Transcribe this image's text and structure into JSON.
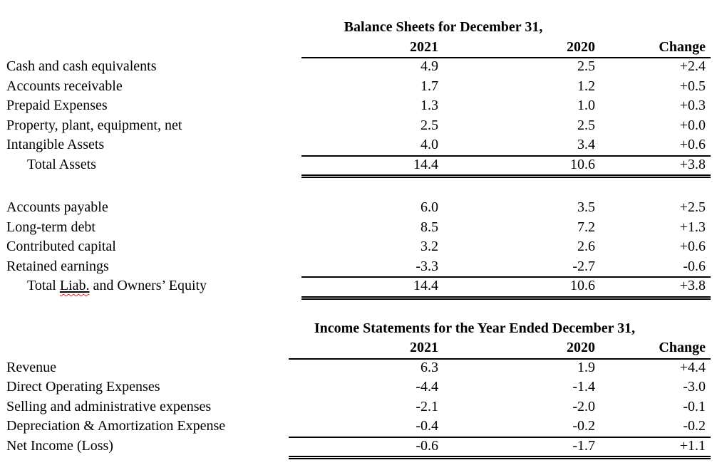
{
  "document": {
    "background_color": "#ffffff",
    "text_color": "#000000",
    "spellcheck_underline_color": "#e8261f"
  },
  "balance_sheet": {
    "title": "Balance Sheets for December 31,",
    "col_2021": "2021",
    "col_2020": "2020",
    "col_change": "Change",
    "asset_rows": [
      {
        "label": "Cash and cash equivalents",
        "v2021": "4.9",
        "v2020": "2.5",
        "change": "+2.4"
      },
      {
        "label": "Accounts receivable",
        "v2021": "1.7",
        "v2020": "1.2",
        "change": "+0.5"
      },
      {
        "label": "Prepaid Expenses",
        "v2021": "1.3",
        "v2020": "1.0",
        "change": "+0.3"
      },
      {
        "label": "Property, plant, equipment, net",
        "v2021": "2.5",
        "v2020": "2.5",
        "change": "+0.0"
      },
      {
        "label": "Intangible Assets",
        "v2021": "4.0",
        "v2020": "3.4",
        "change": "+0.6"
      }
    ],
    "assets_total": {
      "label": "Total Assets",
      "v2021": "14.4",
      "v2020": "10.6",
      "change": "+3.8"
    },
    "liability_rows": [
      {
        "label": "Accounts payable",
        "v2021": "6.0",
        "v2020": "3.5",
        "change": "+2.5"
      },
      {
        "label": "Long-term debt",
        "v2021": "8.5",
        "v2020": "7.2",
        "change": "+1.3"
      },
      {
        "label": "Contributed capital",
        "v2021": "3.2",
        "v2020": "2.6",
        "change": "+0.6"
      },
      {
        "label": "Retained earnings",
        "v2021": "-3.3",
        "v2020": "-2.7",
        "change": "-0.6"
      }
    ],
    "liabilities_total": {
      "label_part1": "Total ",
      "label_misspelled": "Liab.",
      "label_part3": " and Owners’ Equity",
      "v2021": "14.4",
      "v2020": "10.6",
      "change": "+3.8"
    }
  },
  "income_statement": {
    "title": "Income Statements for the Year Ended December 31,",
    "col_2021": "2021",
    "col_2020": "2020",
    "col_change": "Change",
    "rows": [
      {
        "label": "Revenue",
        "v2021": "6.3",
        "v2020": "1.9",
        "change": "+4.4"
      },
      {
        "label": "Direct Operating Expenses",
        "v2021": "-4.4",
        "v2020": "-1.4",
        "change": "-3.0"
      },
      {
        "label": "Selling and administrative expenses",
        "v2021": "-2.1",
        "v2020": "-2.0",
        "change": "-0.1"
      },
      {
        "label": "Depreciation & Amortization Expense",
        "v2021": "-0.4",
        "v2020": "-0.2",
        "change": "-0.2"
      }
    ],
    "total": {
      "label": "Net Income (Loss)",
      "v2021": "-0.6",
      "v2020": "-1.7",
      "change": "+1.1"
    }
  }
}
